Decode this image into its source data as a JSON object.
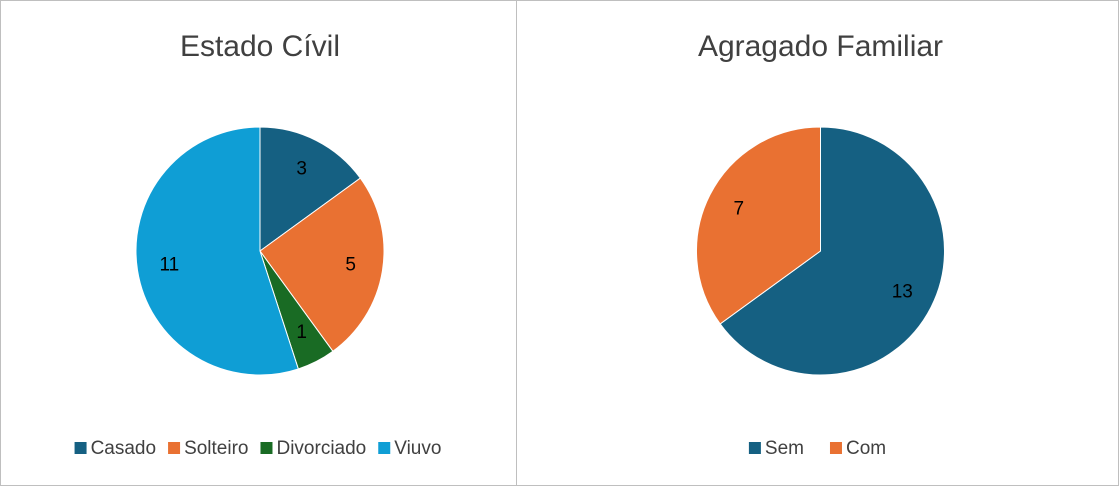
{
  "chart_data": [
    {
      "type": "pie",
      "title": "Estado Cívil",
      "categories": [
        "Casado",
        "Solteiro",
        "Divorciado",
        "Viuvo"
      ],
      "values": [
        3,
        5,
        1,
        11
      ],
      "colors": [
        "#156082",
        "#e97132",
        "#196b24",
        "#0f9ed5"
      ]
    },
    {
      "type": "pie",
      "title": "Agragado Familiar",
      "categories": [
        "Sem",
        "Com"
      ],
      "values": [
        13,
        7
      ],
      "colors": [
        "#156082",
        "#e97132"
      ]
    }
  ]
}
